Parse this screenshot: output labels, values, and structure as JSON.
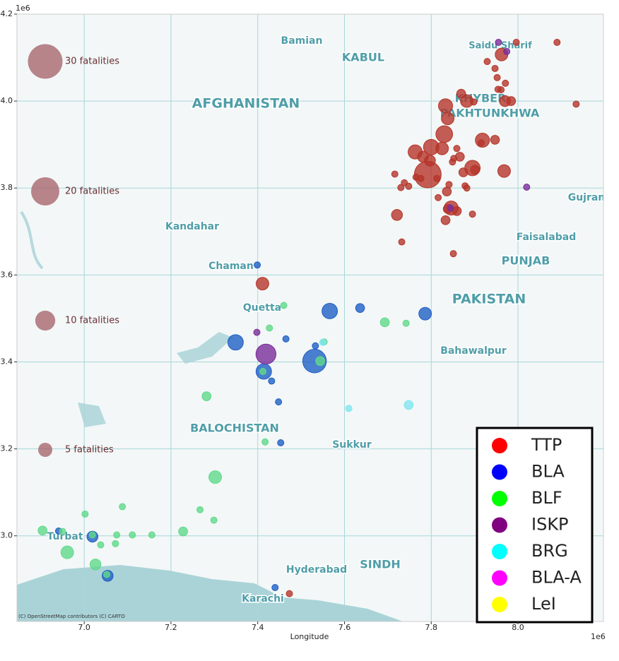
{
  "chart_data": {
    "type": "scatter",
    "x_label": "Longitude",
    "offset_label": "1e6",
    "attribution": "(C) OpenStreetMap contributors (C) CARTO",
    "xlim": [
      6.845,
      8.197
    ],
    "ylim": [
      2.803,
      4.2
    ],
    "xticks": [
      {
        "value": 7.0,
        "label": "7.0"
      },
      7.2,
      7.4,
      7.6,
      7.8,
      {
        "value": 8.0,
        "label": "8.0"
      }
    ],
    "yticks": [
      {
        "value": 3.0,
        "label": "3.0"
      },
      3.2,
      3.4,
      3.6,
      3.8,
      {
        "value": 4.0,
        "label": "4.0"
      },
      4.2
    ],
    "grid": true,
    "legend_position": "lower right",
    "size_legend": [
      {
        "value": 30,
        "label": "30 fatalities"
      },
      {
        "value": 20,
        "label": "20 fatalities"
      },
      {
        "value": 10,
        "label": "10 fatalities"
      },
      {
        "value": 5,
        "label": "5 fatalities"
      }
    ],
    "size_legend_color": "#a8666e",
    "map_labels": [
      "Bamian",
      "KABUL",
      "Saidu Sharif",
      "AFGHANISTAN",
      "KHYBER",
      "PAKHTUNKHWA",
      "Kandahar",
      "Chaman",
      "Quetta",
      "PAKISTAN",
      "Faisalabad",
      "PUNJAB",
      "Gujran",
      "Bahawalpur",
      "BALOCHISTAN",
      "Sukkur",
      "Hyderabad",
      "SINDH",
      "Karachi",
      "Turbat"
    ],
    "series": [
      {
        "name": "TTP",
        "color": "#ff0000",
        "marker_color": "#b5352a",
        "x": [
          7.962,
          7.996,
          8.09,
          7.929,
          7.947,
          7.952,
          7.971,
          7.954,
          7.961,
          7.869,
          7.882,
          7.833,
          7.898,
          7.97,
          7.984,
          7.838,
          7.83,
          7.8,
          7.763,
          7.781,
          7.825,
          7.859,
          7.866,
          7.915,
          7.947,
          7.918,
          7.765,
          7.792,
          7.797,
          7.852,
          7.895,
          7.901,
          7.874,
          7.878,
          7.849,
          7.968,
          7.836,
          7.816,
          7.846,
          7.838,
          7.859,
          7.833,
          7.895,
          7.721,
          7.732,
          7.851,
          7.716,
          7.738,
          7.73,
          7.748,
          7.841,
          7.882,
          7.813,
          7.776,
          7.411,
          7.473,
          8.134
        ],
        "y": [
          4.107,
          4.135,
          4.135,
          4.091,
          4.075,
          4.054,
          4.041,
          4.027,
          4.026,
          4.017,
          4.0,
          3.989,
          3.998,
          4.0,
          4.0,
          3.96,
          3.924,
          3.894,
          3.883,
          3.872,
          3.891,
          3.891,
          3.872,
          3.904,
          3.911,
          3.91,
          3.825,
          3.831,
          3.863,
          3.868,
          3.846,
          3.842,
          3.836,
          3.805,
          3.86,
          3.839,
          3.792,
          3.778,
          3.754,
          3.752,
          3.747,
          3.726,
          3.74,
          3.738,
          3.676,
          3.649,
          3.832,
          3.812,
          3.801,
          3.804,
          3.808,
          3.8,
          3.822,
          3.822,
          3.58,
          2.867,
          3.993
        ],
        "sizes": [
          4,
          1,
          1,
          1,
          1,
          1,
          1,
          1,
          1,
          2,
          4,
          5,
          1,
          3,
          2,
          4,
          7,
          6,
          5,
          3,
          4,
          1,
          2,
          1,
          2,
          5,
          1,
          18,
          3,
          1,
          6,
          2,
          2,
          1,
          1,
          4,
          2,
          1,
          5,
          2,
          2,
          2,
          1,
          3,
          1,
          1,
          1,
          1,
          1,
          1,
          1,
          1,
          1,
          1,
          4,
          1,
          1
        ]
      },
      {
        "name": "BLA",
        "color": "#0000ff",
        "marker_color": "#1f5fc4",
        "x": [
          7.399,
          7.349,
          7.414,
          7.531,
          7.533,
          7.566,
          7.636,
          7.786,
          7.465,
          7.432,
          7.448,
          7.453,
          6.941,
          7.019,
          7.054,
          7.44
        ],
        "y": [
          3.623,
          3.445,
          3.378,
          3.402,
          3.437,
          3.517,
          3.524,
          3.511,
          3.453,
          3.356,
          3.308,
          3.214,
          3.011,
          2.998,
          2.908,
          2.881
        ],
        "sizes": [
          1,
          6,
          6,
          14,
          1,
          6,
          2,
          4,
          1,
          1,
          1,
          1,
          1,
          3,
          3,
          1
        ]
      },
      {
        "name": "BLF",
        "color": "#00ff00",
        "marker_color": "#5fd98a",
        "x": [
          7.46,
          7.427,
          7.544,
          7.693,
          7.742,
          7.282,
          7.417,
          7.302,
          7.299,
          7.267,
          7.228,
          7.156,
          7.111,
          7.075,
          7.019,
          7.002,
          7.088,
          7.072,
          7.038,
          6.961,
          7.026,
          6.904,
          6.95,
          7.412,
          7.052,
          7.553
        ],
        "y": [
          3.53,
          3.478,
          3.402,
          3.491,
          3.489,
          3.321,
          3.216,
          3.135,
          3.036,
          3.06,
          3.01,
          3.002,
          3.002,
          3.002,
          3.002,
          3.05,
          3.067,
          2.982,
          2.979,
          2.962,
          2.934,
          3.012,
          3.01,
          3.378,
          2.911,
          3.446
        ],
        "sizes": [
          1,
          1,
          2,
          2,
          1,
          2,
          1,
          4,
          1,
          1,
          2,
          1,
          1,
          1,
          1,
          1,
          1,
          1,
          1,
          4,
          3,
          2,
          1,
          1,
          1,
          1
        ]
      },
      {
        "name": "ISKP",
        "color": "#800080",
        "marker_color": "#7a2d9a",
        "x": [
          7.419,
          7.398,
          8.02,
          7.955,
          7.974,
          7.844
        ],
        "y": [
          3.418,
          3.468,
          3.802,
          4.135,
          4.114,
          3.754
        ],
        "sizes": [
          10,
          1,
          1,
          1,
          1,
          1
        ]
      },
      {
        "name": "BRG",
        "color": "#00ffff",
        "marker_color": "#7fe6ef",
        "x": [
          7.748,
          7.61,
          7.55
        ],
        "y": [
          3.301,
          3.293,
          3.445
        ],
        "sizes": [
          2,
          1,
          1
        ]
      },
      {
        "name": "BLA-A",
        "color": "#ff00ff",
        "marker_color": "#ff00ff",
        "x": [],
        "y": [],
        "sizes": []
      },
      {
        "name": "LeI",
        "color": "#ffff00",
        "marker_color": "#ffff00",
        "x": [],
        "y": [],
        "sizes": []
      }
    ]
  }
}
